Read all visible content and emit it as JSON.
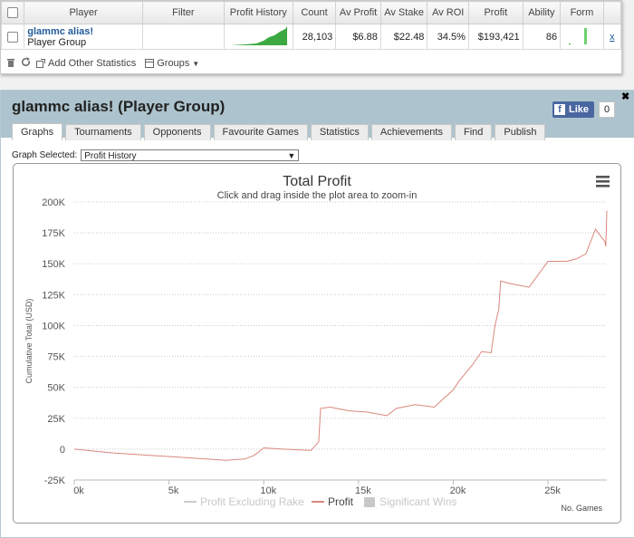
{
  "stats_table": {
    "columns": [
      "Player",
      "Filter",
      "Profit History",
      "Count",
      "Av Profit",
      "Av Stake",
      "Av ROI",
      "Profit",
      "Ability",
      "Form"
    ],
    "row": {
      "player_name": "glammc alias!",
      "player_type": "Player Group",
      "filter": "",
      "count": "28,103",
      "av_profit": "$6.88",
      "av_stake": "$22.48",
      "av_roi": "34.5%",
      "profit": "$193,421",
      "ability": "86",
      "remove": "x"
    }
  },
  "toolbar": {
    "add_stats_label": "Add Other Statistics",
    "groups_label": "Groups"
  },
  "panel": {
    "title": "glammc alias! (Player Group)",
    "like_label": "Like",
    "like_count": "0"
  },
  "tabs": [
    "Graphs",
    "Tournaments",
    "Opponents",
    "Favourite Games",
    "Statistics",
    "Achievements",
    "Find",
    "Publish"
  ],
  "graph_selector": {
    "label": "Graph Selected:",
    "value": "Profit History"
  },
  "chart_data": {
    "type": "line",
    "title": "Total Profit",
    "subtitle": "Click and drag inside the plot area to zoom-in",
    "xlabel": "No. Games",
    "ylabel": "Cumulative Total (USD)",
    "xlim": [
      0,
      28103
    ],
    "ylim": [
      -25000,
      200000
    ],
    "x_ticks": [
      0,
      5000,
      10000,
      15000,
      20000,
      25000
    ],
    "x_tick_labels": [
      "0k",
      "5k",
      "10k",
      "15k",
      "20k",
      "25k"
    ],
    "y_ticks": [
      -25000,
      0,
      25000,
      50000,
      75000,
      100000,
      125000,
      150000,
      175000,
      200000
    ],
    "y_tick_labels": [
      "-25K",
      "0",
      "25K",
      "50K",
      "75K",
      "100K",
      "125K",
      "150K",
      "175K",
      "200K"
    ],
    "grid": true,
    "legend_position": "bottom",
    "series": [
      {
        "name": "Profit",
        "color": "#d9877d",
        "x": [
          0,
          2000,
          4000,
          6000,
          8000,
          9000,
          9500,
          10000,
          11000,
          12500,
          12900,
          13000,
          13500,
          14500,
          15500,
          16500,
          17000,
          18000,
          19000,
          19500,
          20000,
          20300,
          21000,
          21500,
          22000,
          22200,
          22400,
          22500,
          23000,
          24000,
          25000,
          26000,
          26500,
          27000,
          27500,
          28000,
          28050,
          28103
        ],
        "values": [
          0,
          -3000,
          -5000,
          -7000,
          -9000,
          -8000,
          -5000,
          1000,
          0,
          -1000,
          6000,
          33000,
          34000,
          31000,
          30000,
          27000,
          33000,
          36000,
          34000,
          41000,
          48000,
          55000,
          68000,
          79000,
          78000,
          100000,
          113000,
          136000,
          134000,
          131000,
          152000,
          152000,
          154000,
          158000,
          178000,
          168000,
          164000,
          193000
        ]
      },
      {
        "name": "Profit Excluding Rake",
        "color": "#cccccc",
        "x": [],
        "values": []
      },
      {
        "name": "Significant Wins",
        "color": "#c8c8c8",
        "x": [],
        "values": []
      }
    ]
  }
}
